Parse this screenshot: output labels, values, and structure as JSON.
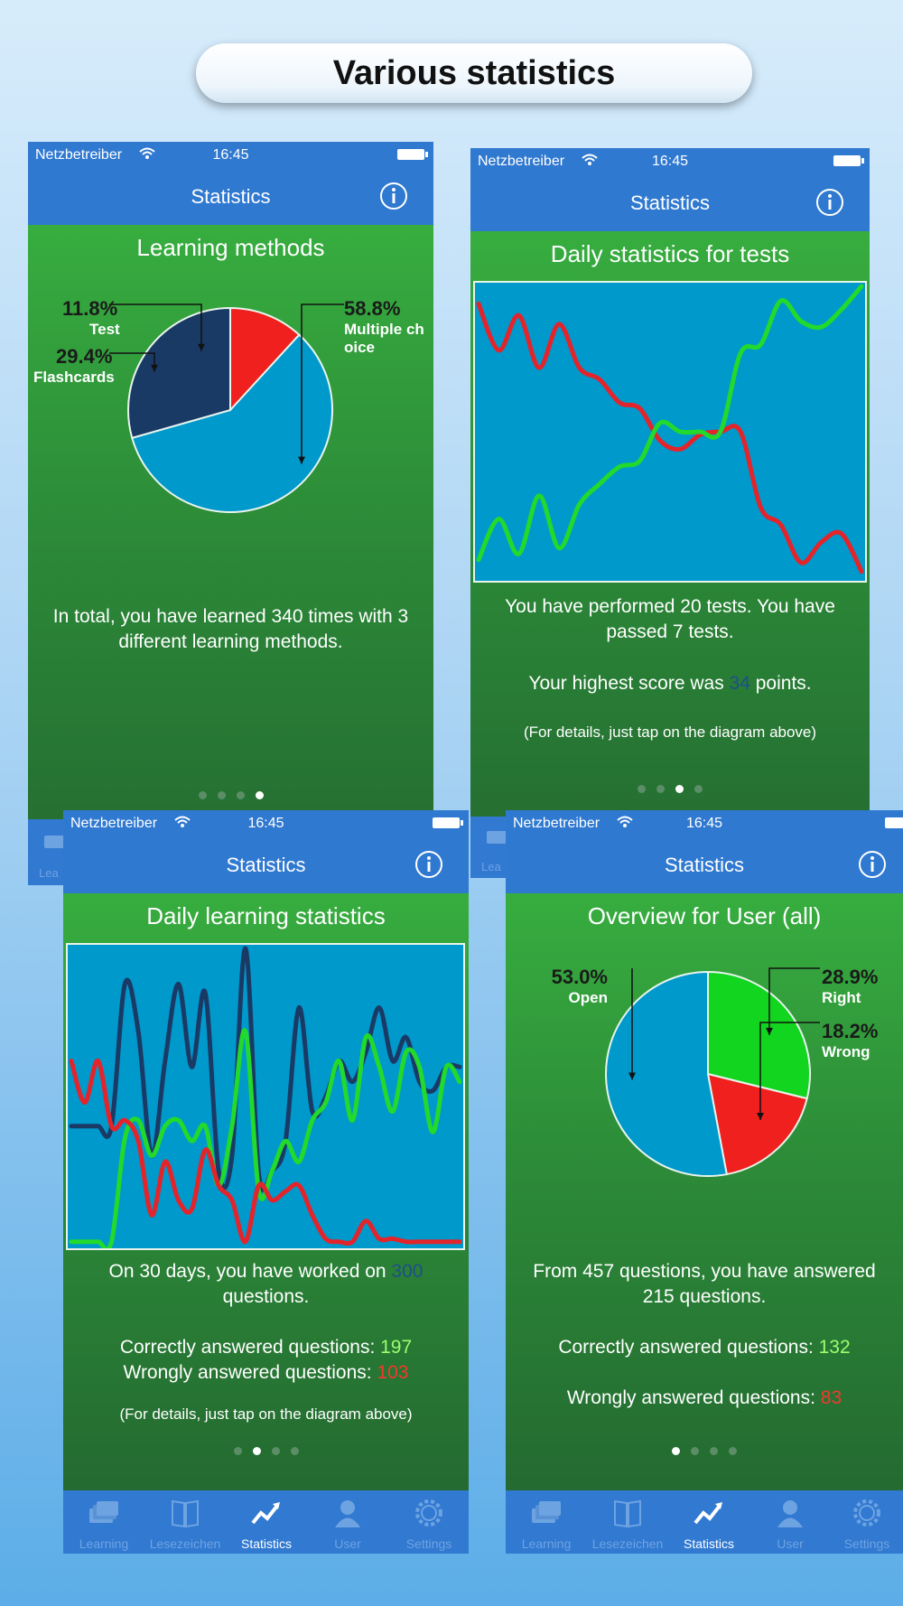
{
  "banner": {
    "title": "Various statistics"
  },
  "status": {
    "carrier": "Netzbetreiber",
    "time": "16:45"
  },
  "nav": {
    "title": "Statistics"
  },
  "tabs": [
    "Learning",
    "Lesezeichen",
    "Statistics",
    "User",
    "Settings"
  ],
  "tabs_partial": "Lea",
  "icons": [
    "wifi-icon",
    "battery-icon",
    "info-icon",
    "cards-icon",
    "book-icon",
    "trend-icon",
    "user-icon",
    "gear-icon"
  ],
  "colors": {
    "nav": "#3079d0",
    "green_bg": "#2c8b38",
    "chart_bg": "#0099cc",
    "pie_blue": "#0099cc",
    "pie_navy": "#1a3a66",
    "pie_red": "#f0201e",
    "pie_green": "#12d520",
    "line_red": "#e3242b",
    "line_green": "#22d92c",
    "line_navy": "#1a3a66",
    "number_blue": "#1e4f8a",
    "number_green": "#9cff6e",
    "number_red": "#f2392e"
  },
  "phone1": {
    "heading": "Learning methods",
    "summary": "In total, you have learned 340 times with 3 different learning methods.",
    "page_index": 4,
    "page_count": 4
  },
  "phone2": {
    "heading": "Daily statistics for tests",
    "summary": "You have performed 20 tests. You have passed 7 tests.",
    "highest_prefix": "Your highest score was ",
    "highest_value": "34",
    "highest_suffix": " points.",
    "hint": "(For details, just tap on the diagram above)",
    "page_index": 3,
    "page_count": 4
  },
  "phone3": {
    "heading": "Daily learning statistics",
    "worked_prefix": "On 30 days, you have worked on ",
    "worked_value": "300",
    "worked_suffix": " questions.",
    "correct_label": "Correctly answered questions: ",
    "correct_value": "197",
    "wrong_label": "Wrongly answered questions: ",
    "wrong_value": "103",
    "hint": "(For details, just tap on the diagram above)",
    "page_index": 2,
    "page_count": 4
  },
  "phone4": {
    "heading": "Overview for User (all)",
    "summary": "From 457 questions, you have answered 215 questions.",
    "correct_label": "Correctly answered questions: ",
    "correct_value": "132",
    "wrong_label": "Wrongly answered questions: ",
    "wrong_value": "83",
    "page_index": 1,
    "page_count": 4
  },
  "chart_data": [
    {
      "type": "pie",
      "title": "Learning methods",
      "labels": [
        "Multiple choice",
        "Flashcards",
        "Test"
      ],
      "label_texts": [
        "Multiple ch",
        "oice",
        "Flashcards",
        "Test"
      ],
      "display_percents": [
        "58.8%",
        "29.4%",
        "11.8%"
      ],
      "values": [
        58.8,
        29.4,
        11.8
      ],
      "colors": [
        "#0099cc",
        "#1a3a66",
        "#f0201e"
      ],
      "total": 340
    },
    {
      "type": "line",
      "title": "Daily statistics for tests",
      "x": [
        1,
        2,
        3,
        4,
        5,
        6,
        7,
        8,
        9,
        10,
        11,
        12,
        13,
        14,
        15,
        16,
        17,
        18,
        19,
        20
      ],
      "ylim": [
        0,
        1
      ],
      "grid": false,
      "series": [
        {
          "color": "#e3242b",
          "values": [
            0.94,
            0.78,
            0.9,
            0.72,
            0.87,
            0.72,
            0.68,
            0.6,
            0.58,
            0.47,
            0.44,
            0.49,
            0.5,
            0.5,
            0.24,
            0.18,
            0.05,
            0.12,
            0.15,
            0.02
          ]
        },
        {
          "color": "#22d92c",
          "values": [
            0.06,
            0.2,
            0.08,
            0.28,
            0.1,
            0.25,
            0.32,
            0.38,
            0.4,
            0.53,
            0.5,
            0.5,
            0.5,
            0.77,
            0.8,
            0.95,
            0.88,
            0.86,
            0.92,
            1.0
          ]
        }
      ]
    },
    {
      "type": "line",
      "title": "Daily learning statistics",
      "x": [
        1,
        2,
        3,
        4,
        5,
        6,
        7,
        8,
        9,
        10,
        11,
        12,
        13,
        14,
        15,
        16,
        17,
        18,
        19,
        20,
        21,
        22,
        23,
        24,
        25,
        26,
        27,
        28,
        29,
        30
      ],
      "ylim": [
        0,
        1
      ],
      "grid": false,
      "series": [
        {
          "color": "#1a3a66",
          "values": [
            0.4,
            0.4,
            0.4,
            0.4,
            0.88,
            0.72,
            0.3,
            0.62,
            0.88,
            0.6,
            0.85,
            0.25,
            0.3,
            1.0,
            0.24,
            0.25,
            0.35,
            0.8,
            0.45,
            0.5,
            0.62,
            0.55,
            0.65,
            0.8,
            0.62,
            0.7,
            0.55,
            0.52,
            0.6,
            0.6
          ]
        },
        {
          "color": "#22d92c",
          "values": [
            0.01,
            0.01,
            0.01,
            0.01,
            0.36,
            0.42,
            0.3,
            0.4,
            0.42,
            0.35,
            0.4,
            0.2,
            0.4,
            0.72,
            0.18,
            0.25,
            0.35,
            0.28,
            0.42,
            0.48,
            0.62,
            0.42,
            0.7,
            0.6,
            0.45,
            0.65,
            0.6,
            0.38,
            0.6,
            0.55
          ]
        },
        {
          "color": "#e3242b",
          "values": [
            0.62,
            0.48,
            0.62,
            0.4,
            0.42,
            0.35,
            0.1,
            0.28,
            0.15,
            0.12,
            0.32,
            0.2,
            0.15,
            0.01,
            0.2,
            0.15,
            0.18,
            0.2,
            0.1,
            0.02,
            0.01,
            0.01,
            0.08,
            0.02,
            0.02,
            0.01,
            0.01,
            0.01,
            0.01,
            0.01
          ]
        }
      ]
    },
    {
      "type": "pie",
      "title": "Overview for User (all)",
      "labels": [
        "Right",
        "Wrong",
        "Open"
      ],
      "display_percents": [
        "28.9%",
        "18.2%",
        "53.0%"
      ],
      "values": [
        28.9,
        18.2,
        53.0
      ],
      "colors": [
        "#12d520",
        "#f0201e",
        "#0099cc"
      ],
      "total": 457
    }
  ]
}
